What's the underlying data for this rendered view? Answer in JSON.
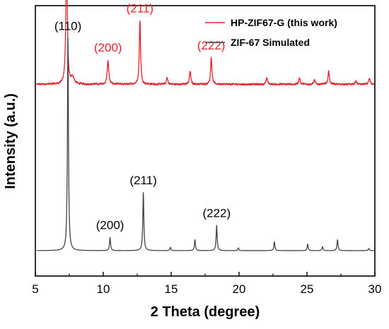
{
  "chart_data": {
    "type": "line",
    "xlabel": "2 Theta (degree)",
    "ylabel": "Intensity (a.u.)",
    "xlim": [
      5,
      30
    ],
    "xticks": [
      5,
      10,
      15,
      20,
      25,
      30
    ],
    "y_ticks_shown": false,
    "grid": false,
    "legend_position": "top-right",
    "series": [
      {
        "name": "HP-ZIF67-G (this work)",
        "color": "#e8222a",
        "baseline": 0.76,
        "noise": 0.006,
        "peaks": [
          {
            "x": 7.3,
            "h": 0.58,
            "w": 0.065
          },
          {
            "x": 7.75,
            "h": 0.03,
            "w": 0.12
          },
          {
            "x": 10.35,
            "h": 0.11,
            "w": 0.065
          },
          {
            "x": 12.7,
            "h": 0.29,
            "w": 0.055
          },
          {
            "x": 14.7,
            "h": 0.03,
            "w": 0.06
          },
          {
            "x": 16.4,
            "h": 0.06,
            "w": 0.06
          },
          {
            "x": 17.95,
            "h": 0.12,
            "w": 0.06
          },
          {
            "x": 22.05,
            "h": 0.03,
            "w": 0.06
          },
          {
            "x": 24.45,
            "h": 0.03,
            "w": 0.06
          },
          {
            "x": 25.55,
            "h": 0.02,
            "w": 0.06
          },
          {
            "x": 26.6,
            "h": 0.06,
            "w": 0.06
          },
          {
            "x": 28.6,
            "h": 0.015,
            "w": 0.06
          },
          {
            "x": 29.6,
            "h": 0.025,
            "w": 0.06
          }
        ]
      },
      {
        "name": "ZIF-67 Simulated",
        "color": "#444444",
        "baseline": 0.0,
        "noise": 0.0,
        "peaks": [
          {
            "x": 7.4,
            "h": 0.97,
            "w": 0.045
          },
          {
            "x": 10.5,
            "h": 0.06,
            "w": 0.045
          },
          {
            "x": 12.95,
            "h": 0.265,
            "w": 0.045
          },
          {
            "x": 14.95,
            "h": 0.015,
            "w": 0.045
          },
          {
            "x": 16.75,
            "h": 0.05,
            "w": 0.045
          },
          {
            "x": 18.35,
            "h": 0.115,
            "w": 0.045
          },
          {
            "x": 19.95,
            "h": 0.012,
            "w": 0.045
          },
          {
            "x": 22.6,
            "h": 0.04,
            "w": 0.045
          },
          {
            "x": 25.05,
            "h": 0.03,
            "w": 0.045
          },
          {
            "x": 26.15,
            "h": 0.018,
            "w": 0.045
          },
          {
            "x": 27.25,
            "h": 0.05,
            "w": 0.045
          },
          {
            "x": 29.55,
            "h": 0.01,
            "w": 0.045
          }
        ]
      }
    ],
    "annotations": [
      {
        "series": 0,
        "text": "(110)",
        "x": 7.3
      },
      {
        "series": 0,
        "text": "(200)",
        "x": 10.35
      },
      {
        "series": 0,
        "text": "(211)",
        "x": 12.7
      },
      {
        "series": 0,
        "text": "(222)",
        "x": 17.95
      },
      {
        "series": 1,
        "text": "(110)",
        "x": 7.4
      },
      {
        "series": 1,
        "text": "(200)",
        "x": 10.5
      },
      {
        "series": 1,
        "text": "(211)",
        "x": 12.95
      },
      {
        "series": 1,
        "text": "(222)",
        "x": 18.35
      }
    ]
  }
}
